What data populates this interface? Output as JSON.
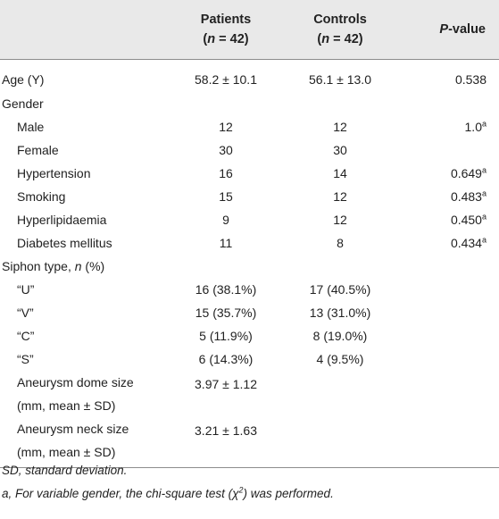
{
  "header": {
    "col1": "",
    "patients_title": "Patients",
    "patients_n": "(n = 42)",
    "controls_title": "Controls",
    "controls_n": "(n = 42)",
    "pvalue_p": "P",
    "pvalue_rest": "-value"
  },
  "rows": [
    {
      "label": "Age (Y)",
      "patients": "58.2 ± 10.1",
      "controls": "56.1 ± 13.0",
      "p": "0.538",
      "sup": ""
    },
    {
      "label": "Gender",
      "patients": "",
      "controls": "",
      "p": "",
      "sup": ""
    },
    {
      "label": "Male",
      "patients": "12",
      "controls": "12",
      "p": "1.0",
      "sup": "a"
    },
    {
      "label": "Female",
      "patients": "30",
      "controls": "30",
      "p": "",
      "sup": ""
    },
    {
      "label": "Hypertension",
      "patients": "16",
      "controls": "14",
      "p": "0.649",
      "sup": "a"
    },
    {
      "label": "Smoking",
      "patients": "15",
      "controls": "12",
      "p": "0.483",
      "sup": "a"
    },
    {
      "label": "Hyperlipidaemia",
      "patients": "9",
      "controls": "12",
      "p": "0.450",
      "sup": "a"
    },
    {
      "label": "Diabetes mellitus",
      "patients": "11",
      "controls": "8",
      "p": "0.434",
      "sup": "a"
    },
    {
      "label": "Siphon type, n (%)",
      "patients": "",
      "controls": "",
      "p": "",
      "sup": ""
    },
    {
      "label": "“U”",
      "patients": "16 (38.1%)",
      "controls": "17 (40.5%)",
      "p": "",
      "sup": ""
    },
    {
      "label": "“V”",
      "patients": "15 (35.7%)",
      "controls": "13 (31.0%)",
      "p": "",
      "sup": ""
    },
    {
      "label": "“C”",
      "patients": "5 (11.9%)",
      "controls": "8 (19.0%)",
      "p": "",
      "sup": ""
    },
    {
      "label": "“S”",
      "patients": "6 (14.3%)",
      "controls": "4 (9.5%)",
      "p": "",
      "sup": ""
    },
    {
      "label_line1": "Aneurysm dome size",
      "label_line2": "(mm, mean ± SD)",
      "patients": "3.97 ± 1.12",
      "controls": "",
      "p": ""
    },
    {
      "label_line1": "Aneurysm neck size",
      "label_line2": "(mm, mean ± SD)",
      "patients": "3.21 ± 1.63",
      "controls": "",
      "p": ""
    }
  ],
  "siphon_label_prefix": "Siphon type, ",
  "siphon_label_n": "n",
  "siphon_label_suffix": " (%)",
  "footnotes": {
    "sd": "SD, standard deviation.",
    "a": "a, For variable gender, the chi-square test (χ",
    "a_sup": "2",
    "a_end": ") was performed."
  }
}
